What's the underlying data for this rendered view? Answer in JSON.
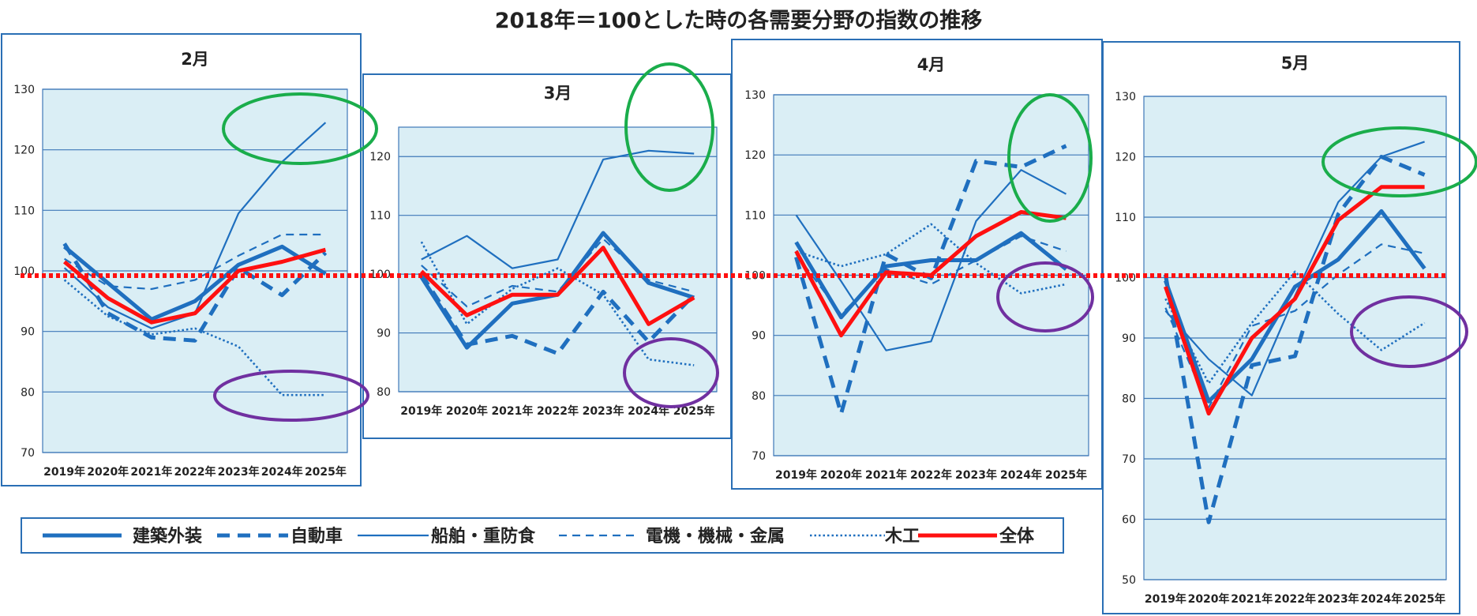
{
  "title": "2018年＝100とした時の各需要分野の指数の推移",
  "colors": {
    "blue": "#1f6fbf",
    "red": "#ff1010",
    "plot_bg": "#daeef5",
    "grid": "#3f78b8",
    "green_marker": "#1aad4b",
    "purple_marker": "#7030a0"
  },
  "legend": {
    "items": [
      {
        "key": "kenchiku",
        "label": "建築外装",
        "style": "thick"
      },
      {
        "key": "jidosha",
        "label": "自動車",
        "style": "thick-dash"
      },
      {
        "key": "senpaku",
        "label": "船舶・重防食",
        "style": "thin"
      },
      {
        "key": "denki",
        "label": "電機・機械・金属",
        "style": "thin-dash"
      },
      {
        "key": "mokko",
        "label": "木工",
        "style": "dotted"
      },
      {
        "key": "zentai",
        "label": "全体",
        "style": "red"
      }
    ]
  },
  "chart_data": [
    {
      "type": "line",
      "title": "2月",
      "categories": [
        "2019年",
        "2020年",
        "2021年",
        "2022年",
        "2023年",
        "2024年",
        "2025年"
      ],
      "ylim": [
        70,
        130
      ],
      "yticks": [
        70,
        80,
        90,
        100,
        110,
        120,
        130
      ],
      "series": [
        {
          "key": "kenchiku",
          "name": "建築外装",
          "values": [
            104,
            98,
            92,
            95,
            101,
            104,
            99.5
          ]
        },
        {
          "key": "jidosha",
          "name": "自動車",
          "values": [
            104.5,
            93,
            89,
            88.5,
            100.5,
            96,
            103
          ]
        },
        {
          "key": "senpaku",
          "name": "船舶・重防食",
          "values": [
            100.5,
            94,
            90.5,
            93,
            109.5,
            118,
            124.5
          ]
        },
        {
          "key": "denki",
          "name": "電機・機械・金属",
          "values": [
            102,
            97.5,
            97,
            98.5,
            102.5,
            106,
            106
          ]
        },
        {
          "key": "mokko",
          "name": "木工",
          "values": [
            98.5,
            92.5,
            89.5,
            90.5,
            87.5,
            79.5,
            79.5
          ]
        },
        {
          "key": "zentai",
          "name": "全体",
          "values": [
            101.5,
            95.5,
            91.5,
            93,
            100,
            101.5,
            103.5
          ]
        }
      ]
    },
    {
      "type": "line",
      "title": "3月",
      "categories": [
        "2019年",
        "2020年",
        "2021年",
        "2022年",
        "2023年",
        "2024年",
        "2025年"
      ],
      "ylim": [
        80,
        125
      ],
      "yticks": [
        80,
        90,
        100,
        110,
        120
      ],
      "series": [
        {
          "key": "kenchiku",
          "name": "建築外装",
          "values": [
            99.5,
            87.5,
            95,
            96.5,
            107,
            98.5,
            96
          ]
        },
        {
          "key": "jidosha",
          "name": "自動車",
          "values": [
            100,
            88,
            89.5,
            86.5,
            97,
            88.5,
            96.5
          ]
        },
        {
          "key": "senpaku",
          "name": "船舶・重防食",
          "values": [
            102.5,
            106.5,
            101,
            102.5,
            119.5,
            121,
            120.5
          ]
        },
        {
          "key": "denki",
          "name": "電機・機械・金属",
          "values": [
            101.5,
            94.5,
            98,
            97,
            106,
            99,
            97
          ]
        },
        {
          "key": "mokko",
          "name": "木工",
          "values": [
            105.5,
            91.5,
            97.5,
            101,
            96.5,
            85.5,
            84.5
          ]
        },
        {
          "key": "zentai",
          "name": "全体",
          "values": [
            100.5,
            93,
            96.5,
            96.5,
            104.5,
            91.5,
            96
          ]
        }
      ]
    },
    {
      "type": "line",
      "title": "4月",
      "categories": [
        "2019年",
        "2020年",
        "2021年",
        "2022年",
        "2023年",
        "2024年",
        "2025年"
      ],
      "ylim": [
        70,
        130
      ],
      "yticks": [
        70,
        80,
        90,
        100,
        110,
        120,
        130
      ],
      "series": [
        {
          "key": "kenchiku",
          "name": "建築外装",
          "values": [
            105.5,
            93,
            101.5,
            102.5,
            102.5,
            107,
            101
          ]
        },
        {
          "key": "jidosha",
          "name": "自動車",
          "values": [
            103,
            77,
            103.5,
            99.5,
            119,
            118,
            121.5
          ]
        },
        {
          "key": "senpaku",
          "name": "船舶・重防食",
          "values": [
            110,
            99,
            87.5,
            89,
            109,
            117.5,
            113.5
          ]
        },
        {
          "key": "denki",
          "name": "電機・機械・金属",
          "values": [
            103.5,
            93.5,
            101,
            98.5,
            102.5,
            106.5,
            104
          ]
        },
        {
          "key": "mokko",
          "name": "木工",
          "values": [
            104,
            101.5,
            103.5,
            108.5,
            102,
            97,
            98.5
          ]
        },
        {
          "key": "zentai",
          "name": "全体",
          "values": [
            104,
            90,
            100.5,
            100,
            106.5,
            110.5,
            109.5
          ]
        }
      ]
    },
    {
      "type": "line",
      "title": "5月",
      "categories": [
        "2019年",
        "2020年",
        "2021年",
        "2022年",
        "2023年",
        "2024年",
        "2025年"
      ],
      "ylim": [
        50,
        130
      ],
      "yticks": [
        50,
        60,
        70,
        80,
        90,
        100,
        110,
        120,
        130
      ],
      "series": [
        {
          "key": "kenchiku",
          "name": "建築外装",
          "values": [
            99.5,
            79.5,
            86.5,
            98.5,
            103,
            111,
            101.5
          ]
        },
        {
          "key": "jidosha",
          "name": "自動車",
          "values": [
            100.5,
            59.5,
            85.5,
            87,
            110.5,
            120,
            117
          ]
        },
        {
          "key": "senpaku",
          "name": "船舶・重防食",
          "values": [
            94.5,
            86.5,
            80.5,
            97,
            112.5,
            120,
            122.5
          ]
        },
        {
          "key": "denki",
          "name": "電機・機械・金属",
          "values": [
            95,
            78.5,
            92,
            94.5,
            100.5,
            105.5,
            104
          ]
        },
        {
          "key": "mokko",
          "name": "木工",
          "values": [
            96.5,
            82.5,
            92.5,
            101,
            94,
            88,
            92.5
          ]
        },
        {
          "key": "zentai",
          "name": "全体",
          "values": [
            98.5,
            77.5,
            90,
            96.5,
            109.5,
            115,
            115
          ]
        }
      ]
    }
  ]
}
